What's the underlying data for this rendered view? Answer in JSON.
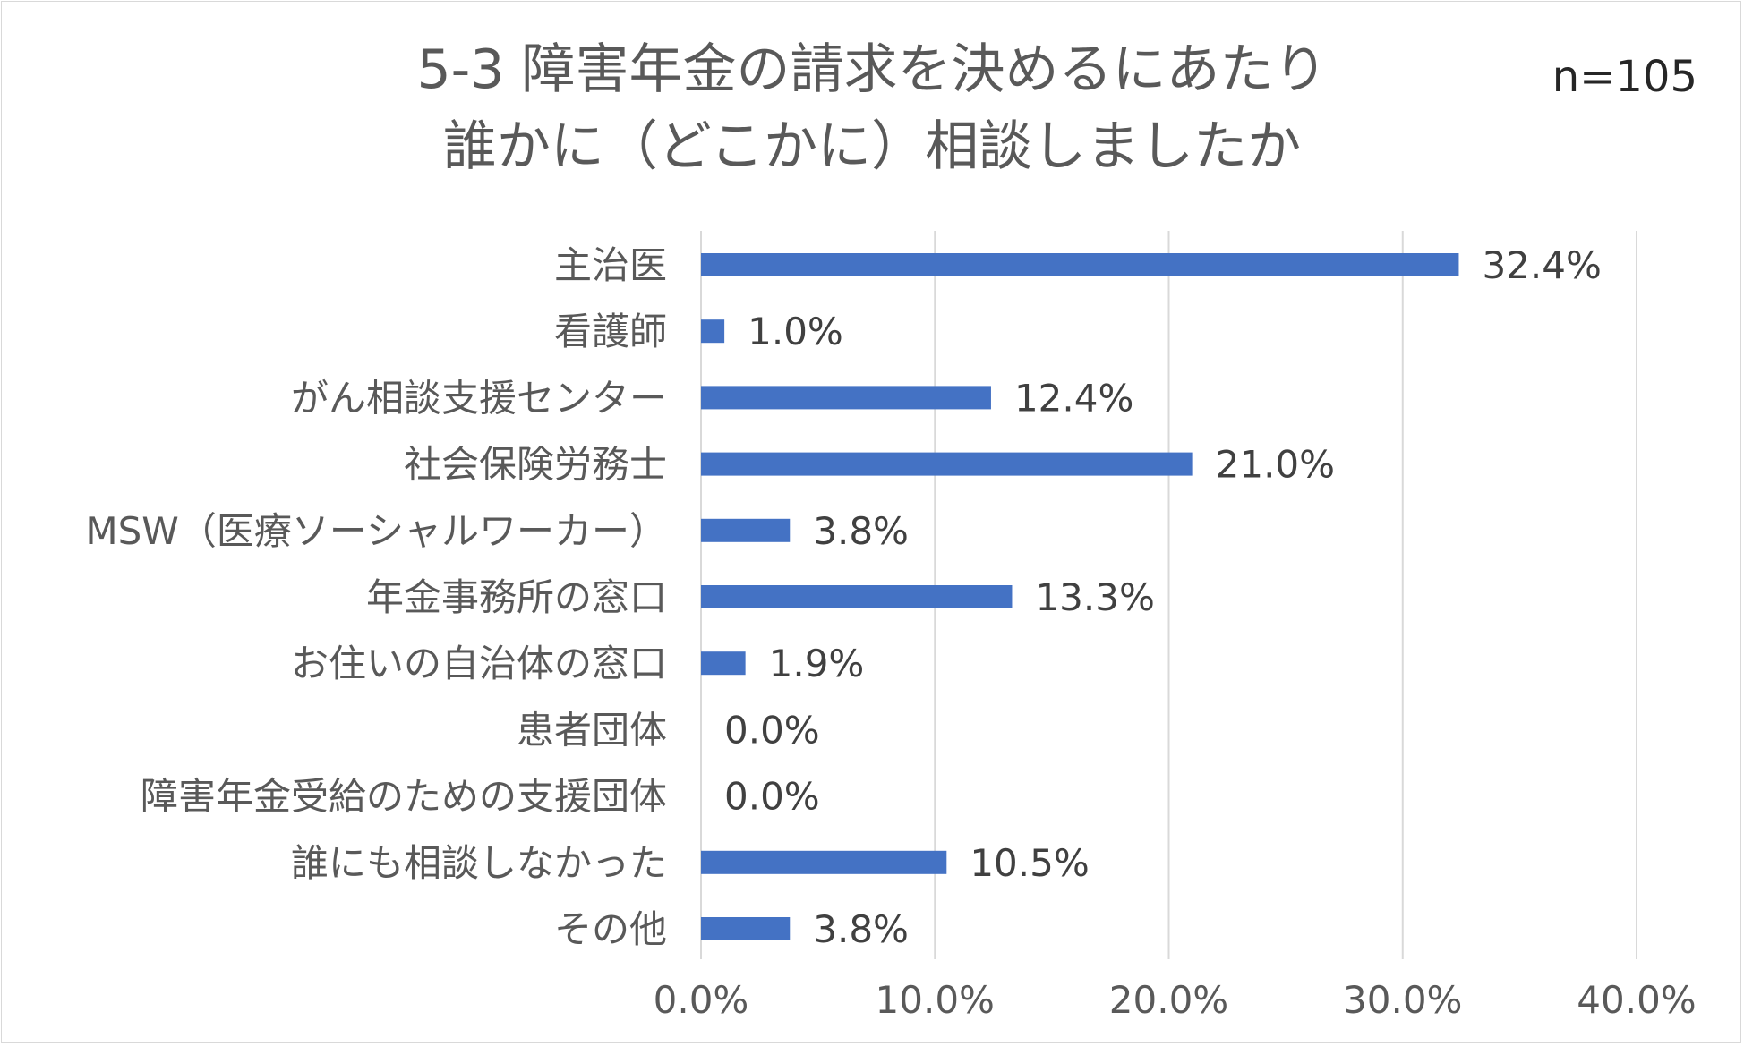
{
  "chart_data": {
    "type": "bar",
    "orientation": "horizontal",
    "title": [
      "5-3 障害年金の請求を決めるにあたり",
      "誰かに（どこかに）相談しましたか"
    ],
    "sample_size": "n=105",
    "categories": [
      "主治医",
      "看護師",
      "がん相談支援センター",
      "社会保険労務士",
      "MSW（医療ソーシャルワーカー）",
      "年金事務所の窓口",
      "お住いの自治体の窓口",
      "患者団体",
      "障害年金受給のための支援団体",
      "誰にも相談しなかった",
      "その他"
    ],
    "values": [
      32.4,
      1.0,
      12.4,
      21.0,
      3.8,
      13.3,
      1.9,
      0.0,
      0.0,
      10.5,
      3.8
    ],
    "value_labels": [
      "32.4%",
      "1.0%",
      "12.4%",
      "21.0%",
      "3.8%",
      "13.3%",
      "1.9%",
      "0.0%",
      "0.0%",
      "10.5%",
      "3.8%"
    ],
    "xlim": [
      0,
      40
    ],
    "x_ticks": [
      0,
      10,
      20,
      30,
      40
    ],
    "x_tick_labels": [
      "0.0%",
      "10.0%",
      "20.0%",
      "30.0%",
      "40.0%"
    ],
    "xlabel": "",
    "ylabel": "",
    "grid": "vertical major gridlines",
    "legend": "none",
    "bar_color": "#4472C4"
  }
}
